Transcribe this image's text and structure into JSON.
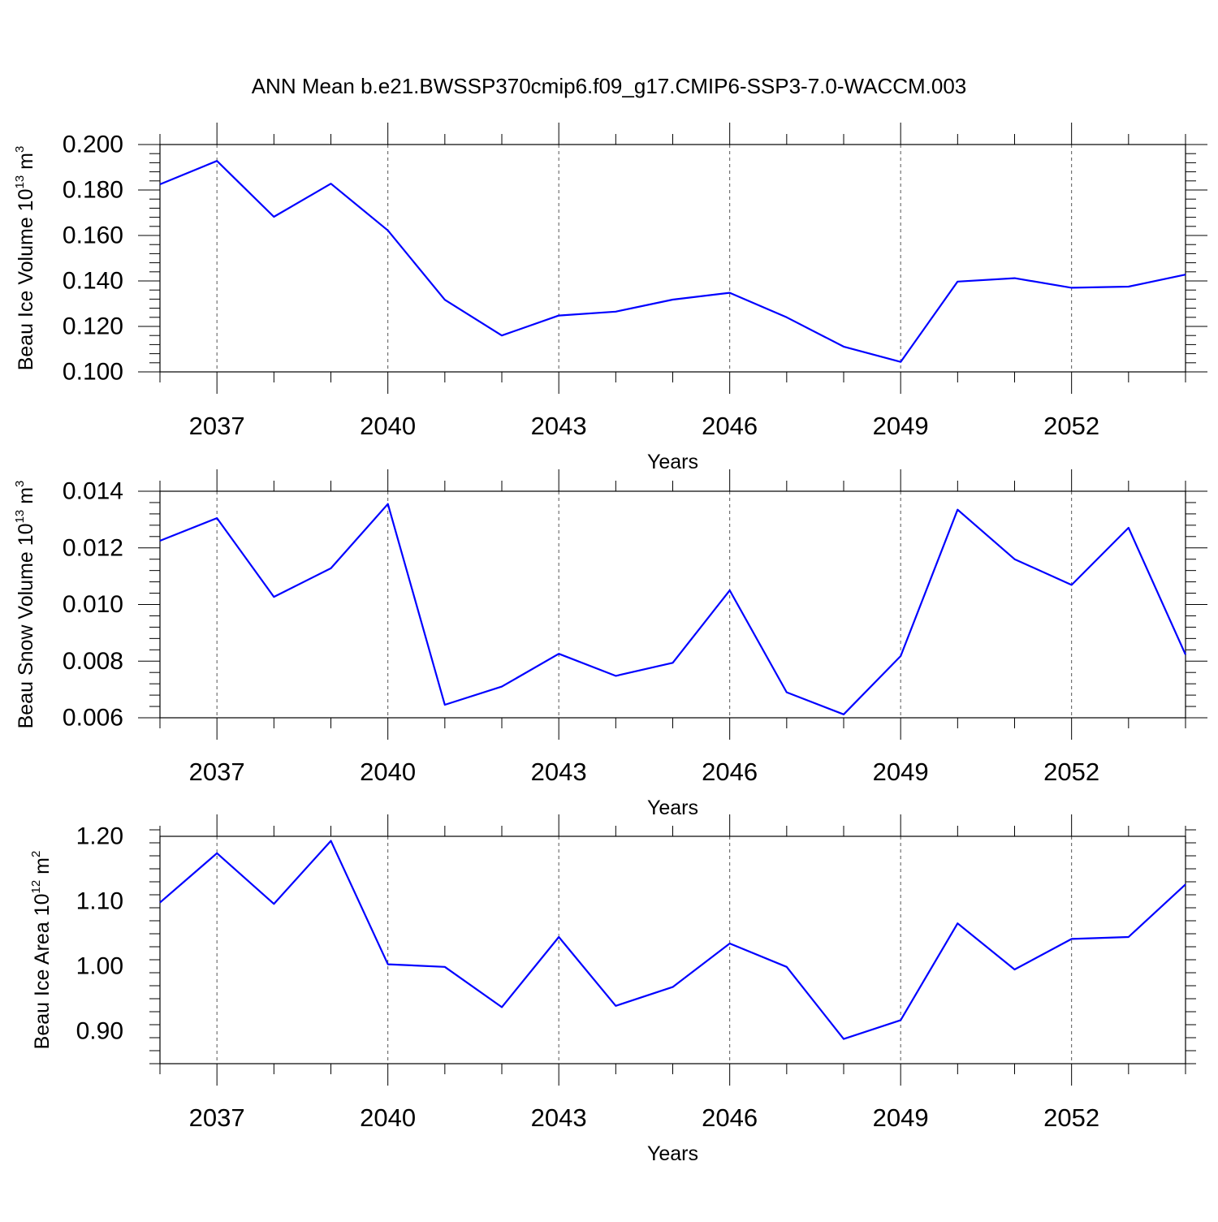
{
  "title": "ANN Mean b.e21.BWSSP370cmip6.f09_g17.CMIP6-SSP3-7.0-WACCM.003",
  "colors": {
    "series": "#0000ff",
    "axis": "#000000",
    "grid": "#555555"
  },
  "chart_data": [
    {
      "type": "line",
      "ylabel": "Beau Ice Volume",
      "yunit_base": "10",
      "yunit_exp": "13",
      "yunit_tail": " m",
      "yunit_tail_exp": "3",
      "xlabel": "Years",
      "xlim": [
        2036,
        2054
      ],
      "ylim": [
        0.1,
        0.2
      ],
      "xticks": [
        2037,
        2040,
        2043,
        2046,
        2049,
        2052
      ],
      "xtick_labels": [
        "2037",
        "2040",
        "2043",
        "2046",
        "2049",
        "2052"
      ],
      "yticks": [
        0.1,
        0.12,
        0.14,
        0.16,
        0.18,
        0.2
      ],
      "ytick_labels": [
        "0.100",
        "0.120",
        "0.140",
        "0.160",
        "0.180",
        "0.200"
      ],
      "grid": "vertical dashed at major x ticks",
      "x": [
        2036,
        2037,
        2038,
        2039,
        2040,
        2041,
        2042,
        2043,
        2044,
        2045,
        2046,
        2047,
        2048,
        2049,
        2050,
        2051,
        2052,
        2053,
        2054
      ],
      "values": [
        0.1825,
        0.1928,
        0.1682,
        0.1828,
        0.1622,
        0.1317,
        0.116,
        0.1248,
        0.1265,
        0.1318,
        0.1348,
        0.124,
        0.1111,
        0.1044,
        0.1397,
        0.1412,
        0.137,
        0.1375,
        0.1428
      ]
    },
    {
      "type": "line",
      "ylabel": "Beau Snow Volume",
      "yunit_base": "10",
      "yunit_exp": "13",
      "yunit_tail": " m",
      "yunit_tail_exp": "3",
      "xlabel": "Years",
      "xlim": [
        2036,
        2054
      ],
      "ylim": [
        0.006,
        0.014
      ],
      "xticks": [
        2037,
        2040,
        2043,
        2046,
        2049,
        2052
      ],
      "xtick_labels": [
        "2037",
        "2040",
        "2043",
        "2046",
        "2049",
        "2052"
      ],
      "yticks": [
        0.006,
        0.008,
        0.01,
        0.012,
        0.014
      ],
      "ytick_labels": [
        "0.006",
        "0.008",
        "0.010",
        "0.012",
        "0.014"
      ],
      "grid": "vertical dashed at major x ticks",
      "x": [
        2036,
        2037,
        2038,
        2039,
        2040,
        2041,
        2042,
        2043,
        2044,
        2045,
        2046,
        2047,
        2048,
        2049,
        2050,
        2051,
        2052,
        2053,
        2054
      ],
      "values": [
        0.01225,
        0.01305,
        0.01027,
        0.01128,
        0.01355,
        0.00646,
        0.0071,
        0.00826,
        0.00748,
        0.00794,
        0.0105,
        0.0069,
        0.00612,
        0.00818,
        0.01335,
        0.0116,
        0.01069,
        0.01271,
        0.00823
      ]
    },
    {
      "type": "line",
      "ylabel": "Beau Ice Area",
      "yunit_base": "10",
      "yunit_exp": "12",
      "yunit_tail": " m",
      "yunit_tail_exp": "2",
      "xlabel": "Years",
      "xlim": [
        2036,
        2054
      ],
      "ylim": [
        0.85,
        1.2
      ],
      "xticks": [
        2037,
        2040,
        2043,
        2046,
        2049,
        2052
      ],
      "xtick_labels": [
        "2037",
        "2040",
        "2043",
        "2046",
        "2049",
        "2052"
      ],
      "yticks": [
        0.9,
        1.0,
        1.1,
        1.2
      ],
      "ytick_labels": [
        "0.90",
        "1.00",
        "1.10",
        "1.20"
      ],
      "grid": "vertical dashed at major x ticks",
      "x": [
        2036,
        2037,
        2038,
        2039,
        2040,
        2041,
        2042,
        2043,
        2044,
        2045,
        2046,
        2047,
        2048,
        2049,
        2050,
        2051,
        2052,
        2053,
        2054
      ],
      "values": [
        1.098,
        1.174,
        1.096,
        1.193,
        1.003,
        0.999,
        0.937,
        1.045,
        0.939,
        0.968,
        1.035,
        0.999,
        0.888,
        0.917,
        1.066,
        0.995,
        1.042,
        1.045,
        1.126
      ]
    }
  ]
}
